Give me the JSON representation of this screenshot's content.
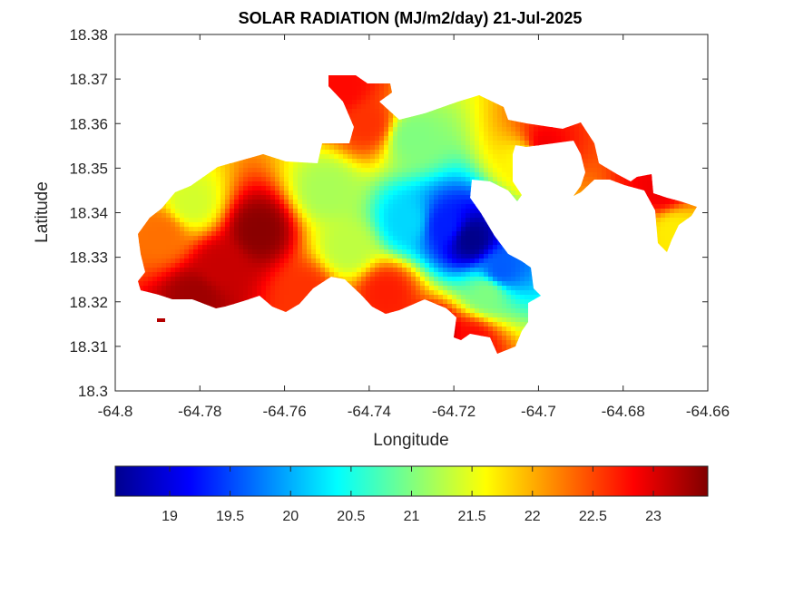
{
  "chart_data": {
    "type": "heatmap",
    "title": "SOLAR RADIATION (MJ/m2/day) 21-Jul-2025",
    "xlabel": "Longitude",
    "ylabel": "Latitude",
    "xlim": [
      -64.8,
      -64.66
    ],
    "ylim": [
      18.3,
      18.38
    ],
    "x_ticks": [
      -64.8,
      -64.78,
      -64.76,
      -64.74,
      -64.72,
      -64.7,
      -64.68,
      -64.66
    ],
    "x_tick_labels": [
      "-64.8",
      "-64.78",
      "-64.76",
      "-64.74",
      "-64.72",
      "-64.7",
      "-64.68",
      "-64.66"
    ],
    "y_ticks": [
      18.3,
      18.31,
      18.32,
      18.33,
      18.34,
      18.35,
      18.36,
      18.37,
      18.38
    ],
    "y_tick_labels": [
      "18.3",
      "18.31",
      "18.32",
      "18.33",
      "18.34",
      "18.35",
      "18.36",
      "18.37",
      "18.38"
    ],
    "grid": false,
    "colormap": "jet",
    "colorbar": {
      "placement": "bottom",
      "range": [
        18.55,
        23.45
      ],
      "ticks": [
        19,
        19.5,
        20,
        20.5,
        21,
        21.5,
        22,
        22.5,
        23
      ],
      "tick_labels": [
        "19",
        "19.5",
        "20",
        "20.5",
        "21",
        "21.5",
        "22",
        "22.5",
        "23"
      ]
    },
    "field": {
      "description_units": "MJ/m2/day",
      "peaks": [
        {
          "lon": -64.766,
          "lat": 18.336,
          "value": 23.4
        },
        {
          "lon": -64.781,
          "lat": 18.321,
          "value": 23.3
        },
        {
          "lon": -64.775,
          "lat": 18.328,
          "value": 23.1
        },
        {
          "lon": -64.755,
          "lat": 18.322,
          "value": 22.6
        },
        {
          "lon": -64.746,
          "lat": 18.368,
          "value": 22.8
        },
        {
          "lon": -64.74,
          "lat": 18.36,
          "value": 22.6
        },
        {
          "lon": -64.716,
          "lat": 18.311,
          "value": 22.8
        },
        {
          "lon": -64.724,
          "lat": 18.312,
          "value": 23.2
        },
        {
          "lon": -64.699,
          "lat": 18.355,
          "value": 22.9
        },
        {
          "lon": -64.671,
          "lat": 18.345,
          "value": 22.9
        },
        {
          "lon": -64.736,
          "lat": 18.322,
          "value": 22.7
        },
        {
          "lon": -64.789,
          "lat": 18.335,
          "value": 22.3
        },
        {
          "lon": -64.782,
          "lat": 18.342,
          "value": 21.4
        },
        {
          "lon": -64.75,
          "lat": 18.345,
          "value": 21.2
        },
        {
          "lon": -64.73,
          "lat": 18.357,
          "value": 21.0
        },
        {
          "lon": -64.745,
          "lat": 18.332,
          "value": 21.3
        },
        {
          "lon": -64.712,
          "lat": 18.322,
          "value": 21.0
        },
        {
          "lon": -64.703,
          "lat": 18.352,
          "value": 21.6
        },
        {
          "lon": -64.668,
          "lat": 18.336,
          "value": 21.7
        },
        {
          "lon": -64.716,
          "lat": 18.334,
          "value": 18.6
        },
        {
          "lon": -64.722,
          "lat": 18.337,
          "value": 19.3
        },
        {
          "lon": -64.731,
          "lat": 18.338,
          "value": 20.2
        },
        {
          "lon": -64.709,
          "lat": 18.327,
          "value": 19.6
        }
      ]
    }
  }
}
